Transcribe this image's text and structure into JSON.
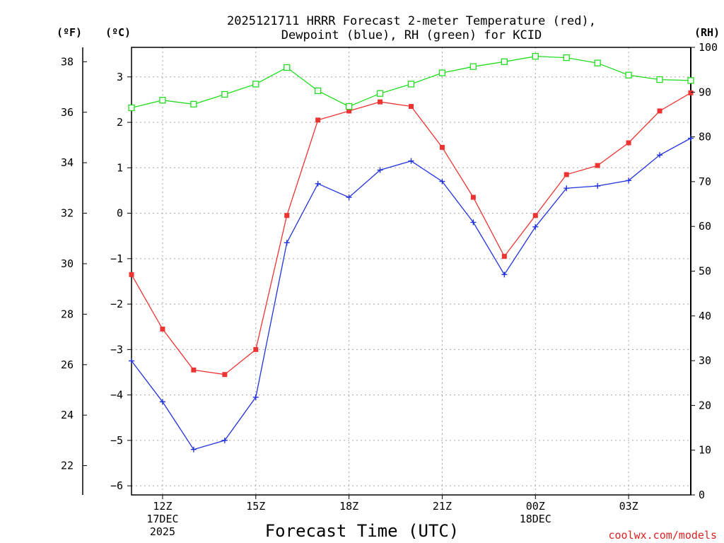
{
  "chart_data": {
    "type": "line",
    "title": [
      "2025121711 HRRR Forecast 2-meter Temperature (red),",
      "Dewpoint (blue), RH (green) for KCID"
    ],
    "xlabel": "Forecast Time (UTC)",
    "credit": "coolwx.com/models",
    "units": {
      "left_outer": "(ºF)",
      "left_inner": "(ºC)",
      "right": "(RH)"
    },
    "x_hours": [
      11,
      12,
      13,
      14,
      15,
      16,
      17,
      18,
      19,
      20,
      21,
      22,
      23,
      24,
      25,
      26,
      27,
      28,
      29
    ],
    "x_range": [
      11,
      29
    ],
    "x_ticks": [
      {
        "hour": 12,
        "lines": [
          "12Z",
          "17DEC",
          "2025"
        ]
      },
      {
        "hour": 15,
        "lines": [
          "15Z"
        ]
      },
      {
        "hour": 18,
        "lines": [
          "18Z"
        ]
      },
      {
        "hour": 21,
        "lines": [
          "21Z"
        ]
      },
      {
        "hour": 24,
        "lines": [
          "00Z",
          "18DEC"
        ]
      },
      {
        "hour": 27,
        "lines": [
          "03Z"
        ]
      }
    ],
    "celsius_axis": {
      "range": [
        -6.2,
        3.65
      ],
      "ticks": [
        -6,
        -5,
        -4,
        -3,
        -2,
        -1,
        0,
        1,
        2,
        3
      ]
    },
    "fahrenheit_axis": {
      "ticks": [
        22,
        24,
        26,
        28,
        30,
        32,
        34,
        36,
        38
      ]
    },
    "rh_axis": {
      "range": [
        0,
        100
      ],
      "ticks": [
        0,
        10,
        20,
        30,
        40,
        50,
        60,
        70,
        80,
        90,
        100
      ]
    },
    "series": [
      {
        "name": "Temperature",
        "unit": "C",
        "color": "#ee3333",
        "marker": "filled-square",
        "values": [
          -1.35,
          -2.55,
          -3.45,
          -3.55,
          -3.0,
          -0.05,
          2.05,
          2.25,
          2.45,
          2.35,
          1.45,
          0.35,
          -0.95,
          -0.05,
          0.85,
          1.05,
          1.55,
          2.25,
          2.65
        ]
      },
      {
        "name": "Dewpoint",
        "unit": "C",
        "color": "#2233dd",
        "marker": "plus",
        "values": [
          -3.25,
          -4.15,
          -5.2,
          -5.0,
          -4.05,
          -0.65,
          0.65,
          0.35,
          0.95,
          1.15,
          0.7,
          -0.2,
          -1.35,
          -0.3,
          0.55,
          0.6,
          0.72,
          1.28,
          1.65
        ]
      },
      {
        "name": "RH",
        "unit": "%",
        "color": "#22dd22",
        "marker": "open-square",
        "values": [
          86.5,
          88.2,
          87.3,
          89.5,
          91.8,
          95.5,
          90.3,
          86.8,
          89.7,
          91.8,
          94.3,
          95.7,
          96.8,
          98.0,
          97.7,
          96.5,
          93.8,
          92.8,
          92.6
        ]
      }
    ]
  }
}
